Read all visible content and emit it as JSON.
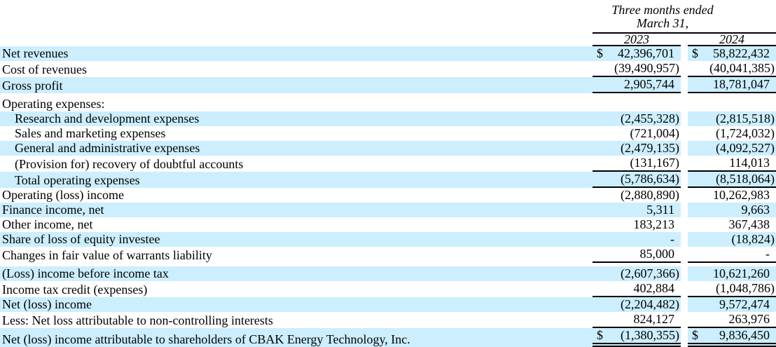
{
  "document": {
    "header": {
      "period_line1": "Three months ended",
      "period_line2": "March 31,",
      "year_2023": "2023",
      "year_2024": "2024"
    },
    "currency_symbol": "$",
    "colors": {
      "row_highlight": "#cceeff",
      "rule": "#000000",
      "text": "#000000",
      "background": "#ffffff"
    },
    "rows": [
      {
        "label": "Net revenues",
        "indent": false,
        "dollar": true,
        "shade": true,
        "underline": "none",
        "spacer_after": false,
        "v2023": "42,396,701",
        "v2024": "58,822,432"
      },
      {
        "label": "Cost of revenues",
        "indent": false,
        "dollar": false,
        "shade": false,
        "underline": "single",
        "spacer_after": false,
        "v2023": "(39,490,957)",
        "v2024": "(40,041,385)"
      },
      {
        "label": "Gross profit",
        "indent": false,
        "dollar": false,
        "shade": true,
        "underline": "single",
        "spacer_after": true,
        "v2023": "2,905,744",
        "v2024": "18,781,047"
      },
      {
        "label": "Operating expenses:",
        "indent": false,
        "dollar": false,
        "shade": false,
        "underline": "none",
        "spacer_after": false,
        "v2023": "",
        "v2024": ""
      },
      {
        "label": "Research and development expenses",
        "indent": true,
        "dollar": false,
        "shade": true,
        "underline": "none",
        "spacer_after": false,
        "v2023": "(2,455,328)",
        "v2024": "(2,815,518)"
      },
      {
        "label": "Sales and marketing expenses",
        "indent": true,
        "dollar": false,
        "shade": false,
        "underline": "none",
        "spacer_after": false,
        "v2023": "(721,004)",
        "v2024": "(1,724,032)"
      },
      {
        "label": "General and administrative expenses",
        "indent": true,
        "dollar": false,
        "shade": true,
        "underline": "none",
        "spacer_after": false,
        "v2023": "(2,479,135)",
        "v2024": "(4,092,527)"
      },
      {
        "label": "(Provision for) recovery of doubtful accounts",
        "indent": true,
        "dollar": false,
        "shade": false,
        "underline": "single",
        "spacer_after": false,
        "v2023": "(131,167)",
        "v2024": "114,013"
      },
      {
        "label": "Total operating expenses",
        "indent": true,
        "dollar": false,
        "shade": true,
        "underline": "single",
        "spacer_after": false,
        "v2023": "(5,786,634)",
        "v2024": "(8,518,064)"
      },
      {
        "label": "Operating (loss) income",
        "indent": false,
        "dollar": false,
        "shade": false,
        "underline": "none",
        "spacer_after": false,
        "v2023": "(2,880,890)",
        "v2024": "10,262,983"
      },
      {
        "label": "Finance income, net",
        "indent": false,
        "dollar": false,
        "shade": true,
        "underline": "none",
        "spacer_after": false,
        "v2023": "5,311",
        "v2024": "9,663"
      },
      {
        "label": "Other income, net",
        "indent": false,
        "dollar": false,
        "shade": false,
        "underline": "none",
        "spacer_after": false,
        "v2023": "183,213",
        "v2024": "367,438"
      },
      {
        "label": "Share of loss of equity investee",
        "indent": false,
        "dollar": false,
        "shade": true,
        "underline": "none",
        "spacer_after": false,
        "v2023": "-",
        "v2024": "(18,824)"
      },
      {
        "label": "Changes in fair value of warrants liability",
        "indent": false,
        "dollar": false,
        "shade": false,
        "underline": "single",
        "spacer_after": true,
        "v2023": "85,000",
        "v2024": "-"
      },
      {
        "label": "(Loss) income before income tax",
        "indent": false,
        "dollar": false,
        "shade": true,
        "underline": "none",
        "spacer_after": false,
        "v2023": "(2,607,366)",
        "v2024": "10,621,260"
      },
      {
        "label": "Income tax credit (expenses)",
        "indent": false,
        "dollar": false,
        "shade": false,
        "underline": "single",
        "spacer_after": false,
        "v2023": "402,884",
        "v2024": "(1,048,786)"
      },
      {
        "label": "Net (loss) income",
        "indent": false,
        "dollar": false,
        "shade": true,
        "underline": "none",
        "spacer_after": false,
        "v2023": "(2,204,482)",
        "v2024": "9,572,474"
      },
      {
        "label": "Less: Net loss attributable to non-controlling interests",
        "indent": false,
        "dollar": false,
        "shade": false,
        "underline": "single",
        "spacer_after": false,
        "v2023": "824,127",
        "v2024": "263,976"
      },
      {
        "label": "Net (loss) income attributable to shareholders of CBAK Energy Technology, Inc.",
        "indent": false,
        "dollar": true,
        "shade": true,
        "underline": "double",
        "spacer_after": false,
        "v2023": "(1,380,355)",
        "v2024": "9,836,450"
      }
    ]
  }
}
